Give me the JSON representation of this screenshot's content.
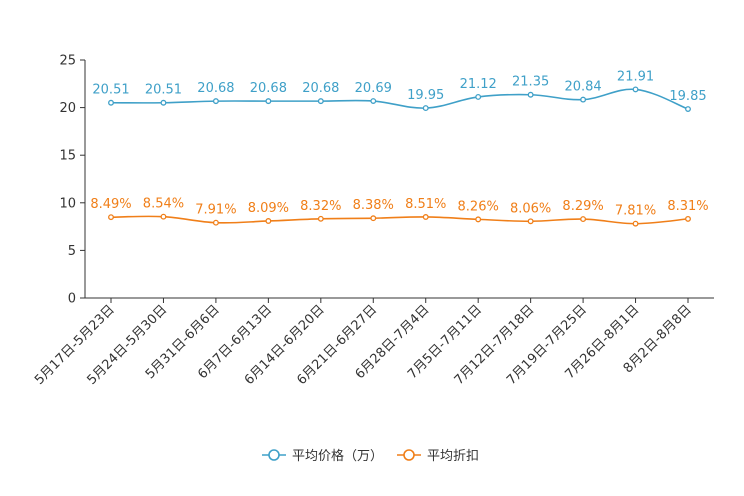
{
  "chart_data": {
    "type": "line",
    "categories": [
      "5月17日-5月23日",
      "5月24日-5月30日",
      "5月31日-6月6日",
      "6月7日-6月13日",
      "6月14日-6月20日",
      "6月21日-6月27日",
      "6月28日-7月4日",
      "7月5日-7月11日",
      "7月12日-7月18日",
      "7月19日-7月25日",
      "7月26日-8月1日",
      "8月2日-8月8日"
    ],
    "ylim": [
      0,
      25
    ],
    "yticks": [
      0,
      5,
      10,
      15,
      20,
      25
    ],
    "ytick_labels": [
      "0",
      "5",
      "10",
      "15",
      "20",
      "25"
    ],
    "series": [
      {
        "name": "平均价格（万）",
        "color": "#3fa0c8",
        "values": [
          20.51,
          20.51,
          20.68,
          20.68,
          20.68,
          20.69,
          19.95,
          21.12,
          21.35,
          20.84,
          21.91,
          19.85
        ],
        "labels": [
          "20.51",
          "20.51",
          "20.68",
          "20.68",
          "20.68",
          "20.69",
          "19.95",
          "21.12",
          "21.35",
          "20.84",
          "21.91",
          "19.85"
        ]
      },
      {
        "name": "平均折扣",
        "color": "#f07f19",
        "values": [
          8.49,
          8.54,
          7.91,
          8.09,
          8.32,
          8.38,
          8.51,
          8.26,
          8.06,
          8.29,
          7.81,
          8.31
        ],
        "labels": [
          "8.49%",
          "8.54%",
          "7.91%",
          "8.09%",
          "8.32%",
          "8.38%",
          "8.51%",
          "8.26%",
          "8.06%",
          "8.29%",
          "7.81%",
          "8.31%"
        ]
      }
    ],
    "legend_position": "bottom-center"
  }
}
